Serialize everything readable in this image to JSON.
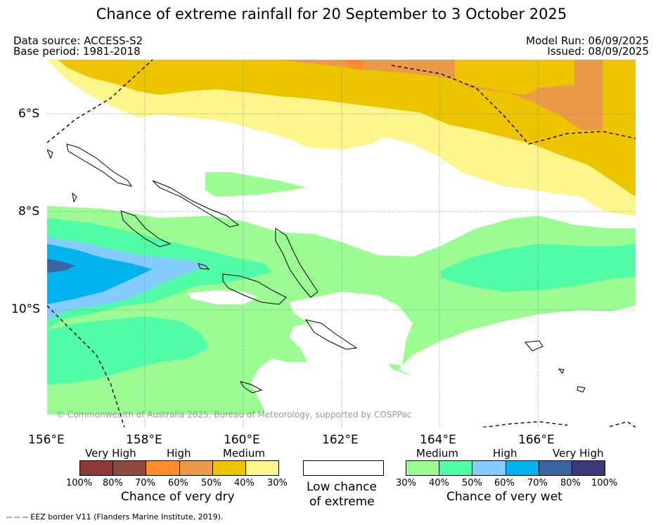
{
  "title": "Chance of extreme rainfall for 20 September to 3 October 2025",
  "data_source": "Data source: ACCESS-S2",
  "base_period": "Base period: 1981-2018",
  "model_run": "Model Run: 06/09/2025",
  "issued": "Issued: 08/09/2025",
  "copyright": "© Commonwealth of Australia 2025, Bureau of Meteorology, supported by COSPPac",
  "lat_labels": [
    "6°S",
    "8°S",
    "10°S"
  ],
  "lon_labels": [
    "156°E",
    "158°E",
    "160°E",
    "162°E",
    "164°E",
    "166°E"
  ],
  "dry_legend": {
    "categories": [
      "Very High",
      "High",
      "Medium"
    ],
    "ticks": [
      "100%",
      "80%",
      "70%",
      "60%",
      "50%",
      "40%",
      "30%"
    ],
    "caption": "Chance of very dry",
    "colors": [
      "#8b3a34",
      "#8c4c3c",
      "#ff8c28",
      "#eb9b47",
      "#ecc500",
      "#fdf68c"
    ]
  },
  "low_legend": {
    "caption_line1": "Low chance",
    "caption_line2": "of extreme",
    "color": "#ffffff"
  },
  "wet_legend": {
    "categories": [
      "Medium",
      "High",
      "Very High"
    ],
    "ticks": [
      "30%",
      "40%",
      "50%",
      "60%",
      "70%",
      "80%",
      "100%"
    ],
    "caption": "Chance of very wet",
    "colors": [
      "#9afc92",
      "#50fca6",
      "#84ccff",
      "#00b2ee",
      "#3a64a2",
      "#3c3a7a"
    ]
  },
  "eez_note": "--  --  -- EEZ border V11 (Flanders Marine Institute, 2019)."
}
